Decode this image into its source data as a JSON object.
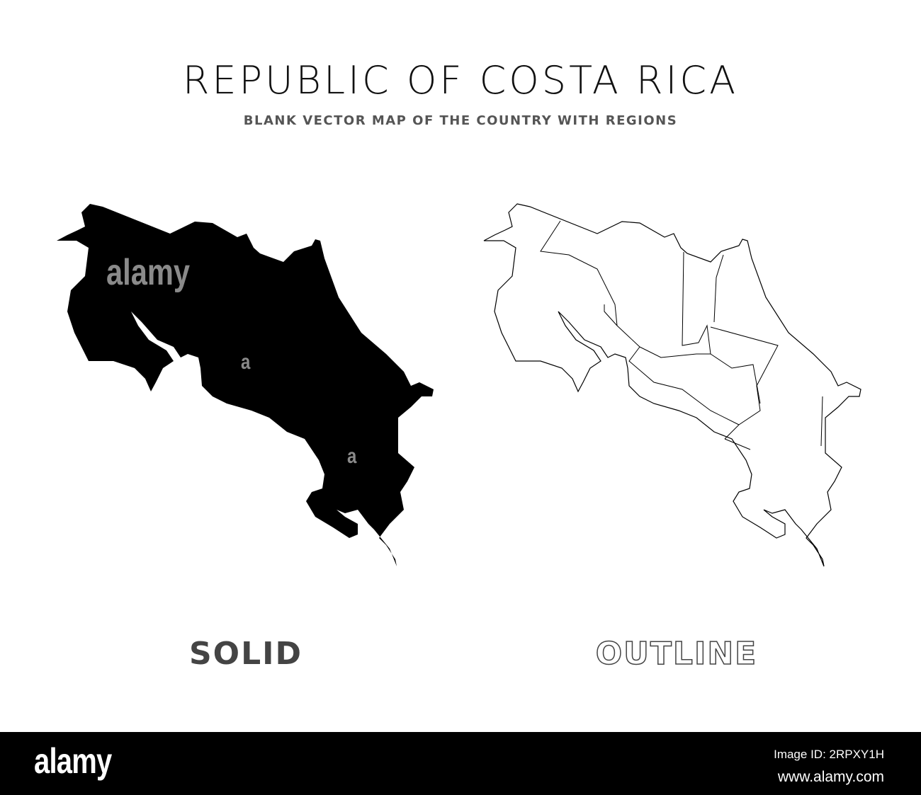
{
  "header": {
    "title": "REPUBLIC OF COSTA RICA",
    "subtitle": "BLANK VECTOR MAP OF THE COUNTRY WITH REGIONS"
  },
  "maps": {
    "solid": {
      "label": "SOLID",
      "fill_color": "#000000"
    },
    "outline": {
      "label": "OUTLINE",
      "stroke_color": "#000000"
    }
  },
  "watermark": {
    "text": "alamy",
    "letter": "a"
  },
  "footer": {
    "logo": "alamy",
    "image_id": "Image ID: 2RPXY1H",
    "website": "www.alamy.com"
  }
}
